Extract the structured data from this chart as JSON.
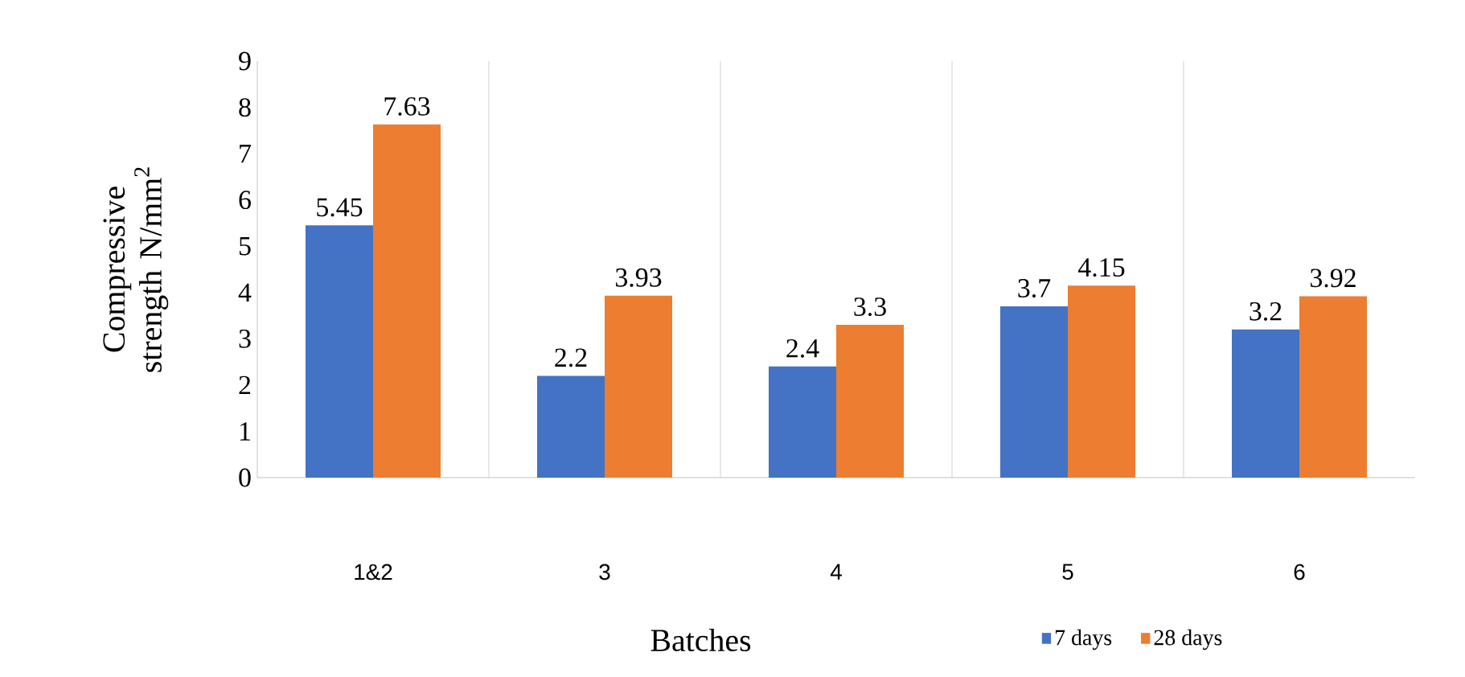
{
  "chart_data": {
    "type": "bar",
    "xlabel": "Batches",
    "ylabel": "Compressive strength N/mm$^{2}$",
    "categories": [
      "1&2",
      "3",
      "4",
      "5",
      "6"
    ],
    "series": [
      {
        "name": "7 days",
        "color": "#4472c4",
        "values": [
          5.45,
          2.2,
          2.4,
          3.7,
          3.2
        ]
      },
      {
        "name": "28 days",
        "color": "#ed7d31",
        "values": [
          7.63,
          3.93,
          3.3,
          4.15,
          3.92
        ]
      }
    ],
    "ylim": [
      0,
      9
    ],
    "yticks": [
      0,
      1,
      2,
      3,
      4,
      5,
      6,
      7,
      8,
      9
    ],
    "grid": "x",
    "legend": "bottom",
    "data_labels": true
  }
}
